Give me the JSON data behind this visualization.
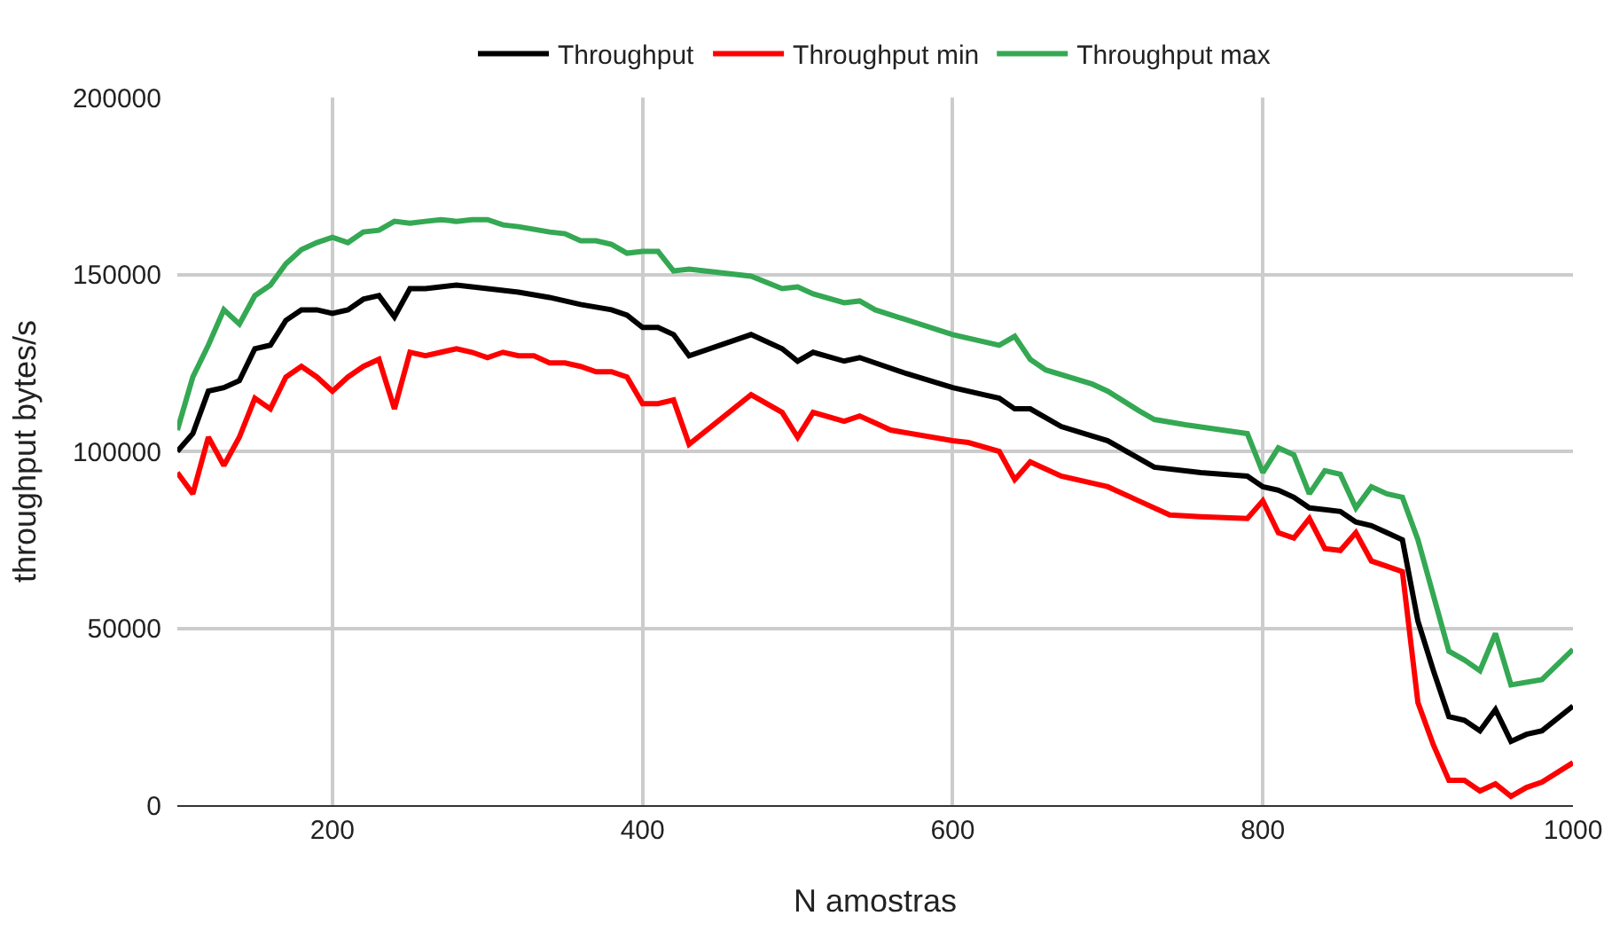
{
  "chart_data": {
    "type": "line",
    "xlabel": "N amostras",
    "ylabel": "throughput bytes/s",
    "xlim": [
      100,
      1000
    ],
    "xticks": [
      200,
      400,
      600,
      800,
      1000
    ],
    "ylim": [
      0,
      200000
    ],
    "yticks": [
      0,
      50000,
      100000,
      150000,
      200000
    ],
    "grid": true,
    "legend": "top",
    "marker": "none",
    "line_style": "solid",
    "series": [
      {
        "name": "Throughput",
        "color": "#000000",
        "x": [
          100,
          110,
          120,
          130,
          140,
          150,
          160,
          170,
          180,
          190,
          200,
          210,
          220,
          230,
          240,
          250,
          260,
          270,
          280,
          290,
          300,
          320,
          340,
          360,
          380,
          390,
          400,
          410,
          420,
          430,
          470,
          490,
          500,
          510,
          530,
          540,
          550,
          570,
          600,
          620,
          630,
          640,
          650,
          670,
          700,
          720,
          730,
          760,
          790,
          800,
          810,
          820,
          830,
          840,
          850,
          860,
          870,
          880,
          890,
          900,
          910,
          920,
          930,
          940,
          950,
          960,
          970,
          980,
          1000
        ],
        "values": [
          100000,
          105000,
          117000,
          118000,
          120000,
          129000,
          130000,
          137000,
          140000,
          140000,
          139000,
          140000,
          143000,
          144000,
          138000,
          146000,
          146000,
          146500,
          147000,
          146500,
          146000,
          145000,
          143500,
          141500,
          140000,
          138500,
          135000,
          135000,
          133000,
          127000,
          133000,
          129000,
          125500,
          128000,
          125500,
          126500,
          125000,
          122000,
          118000,
          116000,
          115000,
          112000,
          112000,
          107000,
          103000,
          98000,
          95500,
          94000,
          93000,
          90000,
          89000,
          87000,
          84000,
          83500,
          83000,
          80000,
          79000,
          77000,
          75000,
          52000,
          38000,
          25000,
          24000,
          21000,
          27000,
          18000,
          20000,
          21000,
          28000
        ]
      },
      {
        "name": "Throughput min",
        "color": "#ff0000",
        "x": [
          100,
          110,
          120,
          130,
          140,
          150,
          160,
          170,
          180,
          190,
          200,
          210,
          220,
          230,
          240,
          250,
          260,
          270,
          280,
          290,
          300,
          310,
          320,
          330,
          340,
          350,
          360,
          370,
          380,
          390,
          400,
          410,
          420,
          430,
          470,
          490,
          500,
          510,
          530,
          540,
          550,
          560,
          600,
          610,
          630,
          640,
          650,
          670,
          690,
          700,
          720,
          740,
          760,
          790,
          800,
          810,
          820,
          830,
          840,
          850,
          860,
          870,
          880,
          890,
          900,
          910,
          920,
          930,
          940,
          950,
          960,
          970,
          980,
          1000
        ],
        "values": [
          94000,
          88000,
          104000,
          96000,
          104000,
          115000,
          112000,
          121000,
          124000,
          121000,
          117000,
          121000,
          124000,
          126000,
          112000,
          128000,
          127000,
          128000,
          129000,
          128000,
          126500,
          128000,
          127000,
          127000,
          125000,
          125000,
          124000,
          122500,
          122500,
          121000,
          113500,
          113500,
          114500,
          102000,
          116000,
          111000,
          104000,
          111000,
          108500,
          110000,
          108000,
          106000,
          103000,
          102500,
          100000,
          92000,
          97000,
          93000,
          91000,
          90000,
          86000,
          82000,
          81500,
          81000,
          86000,
          77000,
          75500,
          81000,
          72500,
          72000,
          77000,
          69000,
          67500,
          66000,
          29000,
          17000,
          7000,
          7000,
          4000,
          6000,
          2500,
          5000,
          6500,
          12000
        ]
      },
      {
        "name": "Throughput max",
        "color": "#34a853",
        "x": [
          100,
          110,
          120,
          130,
          140,
          150,
          160,
          170,
          180,
          190,
          200,
          210,
          220,
          230,
          240,
          250,
          260,
          270,
          280,
          290,
          300,
          310,
          320,
          340,
          350,
          360,
          370,
          380,
          390,
          400,
          410,
          420,
          430,
          470,
          490,
          500,
          510,
          530,
          540,
          550,
          600,
          630,
          640,
          650,
          660,
          690,
          700,
          720,
          730,
          750,
          790,
          800,
          810,
          820,
          830,
          840,
          850,
          860,
          870,
          880,
          890,
          900,
          920,
          930,
          940,
          950,
          960,
          980,
          1000
        ],
        "values": [
          106000,
          121000,
          130000,
          140000,
          136000,
          144000,
          147000,
          153000,
          157000,
          159000,
          160500,
          159000,
          162000,
          162500,
          165000,
          164500,
          165000,
          165500,
          165000,
          165500,
          165500,
          164000,
          163500,
          162000,
          161500,
          159500,
          159500,
          158500,
          156000,
          156500,
          156500,
          151000,
          151500,
          149500,
          146000,
          146500,
          144500,
          142000,
          142500,
          140000,
          133000,
          130000,
          132500,
          126000,
          123000,
          119000,
          117000,
          111500,
          109000,
          107500,
          105000,
          94000,
          101000,
          99000,
          88000,
          94500,
          93500,
          84000,
          90000,
          88000,
          87000,
          75000,
          43500,
          41000,
          38000,
          48500,
          34000,
          35500,
          44000
        ]
      }
    ]
  }
}
